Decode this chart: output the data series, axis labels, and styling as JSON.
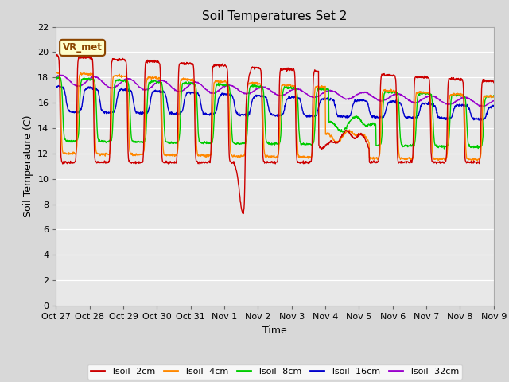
{
  "title": "Soil Temperatures Set 2",
  "xlabel": "Time",
  "ylabel": "Soil Temperature (C)",
  "ylim": [
    0,
    22
  ],
  "yticks": [
    0,
    2,
    4,
    6,
    8,
    10,
    12,
    14,
    16,
    18,
    20,
    22
  ],
  "background_color": "#d8d8d8",
  "plot_bg_color": "#e8e8e8",
  "legend_labels": [
    "Tsoil -2cm",
    "Tsoil -4cm",
    "Tsoil -8cm",
    "Tsoil -16cm",
    "Tsoil -32cm"
  ],
  "line_colors": [
    "#cc0000",
    "#ff8800",
    "#00cc00",
    "#0000cc",
    "#9900cc"
  ],
  "annotation_text": "VR_met",
  "annotation_fg": "#8b4500",
  "annotation_bg": "#ffffcc",
  "annotation_edge": "#8b4500",
  "xtick_labels": [
    "Oct 27",
    "Oct 28",
    "Oct 29",
    "Oct 30",
    "Oct 31",
    "Nov 1",
    "Nov 2",
    "Nov 3",
    "Nov 4",
    "Nov 5",
    "Nov 6",
    "Nov 7",
    "Nov 8",
    "Nov 9"
  ],
  "num_days": 13
}
